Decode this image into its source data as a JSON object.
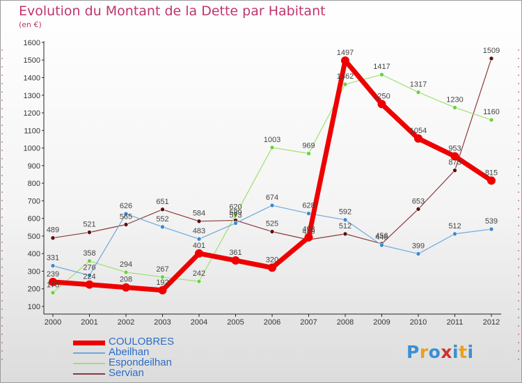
{
  "header": {
    "title": "Evolution du Montant de la Dette par Habitant",
    "subtitle": "(en €)"
  },
  "logo": {
    "text": "Proxiti",
    "colors": [
      "#3a8fd4",
      "#e8a020",
      "#3a8fd4",
      "#d03030",
      "#3a8fd4",
      "#e8a020",
      "#3a8fd4"
    ]
  },
  "chart_data": {
    "type": "line",
    "title": "Evolution du Montant de la Dette par Habitant",
    "subtitle": "(en €)",
    "xlabel": "",
    "ylabel": "",
    "ylim": [
      100,
      1600
    ],
    "yticks": [
      100,
      200,
      300,
      400,
      500,
      600,
      700,
      800,
      900,
      1000,
      1100,
      1200,
      1300,
      1400,
      1500,
      1600
    ],
    "grid": "none",
    "legend_position": "bottom-left",
    "categories": [
      "2000",
      "2001",
      "2002",
      "2003",
      "2004",
      "2005",
      "2006",
      "2007",
      "2008",
      "2009",
      "2010",
      "2011",
      "2012"
    ],
    "series": [
      {
        "name": "Servian",
        "color": "#8a3a3a",
        "marker": "#5a1010",
        "values": [
          489,
          521,
          565,
          651,
          584,
          589,
          525,
          479,
          512,
          456,
          653,
          873,
          1509
        ]
      },
      {
        "name": "Espondeilhan",
        "color": "#9ee070",
        "marker": "#6cd23c",
        "values": [
          178,
          358,
          294,
          267,
          242,
          620,
          1003,
          969,
          1362,
          1417,
          1317,
          1230,
          1160
        ]
      },
      {
        "name": "Abeilhan",
        "color": "#6ea8d8",
        "marker": "#3a8ad0",
        "values": [
          331,
          276,
          626,
          552,
          483,
          573,
          674,
          628,
          592,
          448,
          399,
          512,
          539
        ]
      },
      {
        "name": "COULOBRES",
        "color": "#ee0000",
        "marker": "#ee0000",
        "values": [
          239,
          224,
          208,
          192,
          401,
          361,
          320,
          493,
          1497,
          1250,
          1054,
          953,
          815
        ]
      }
    ]
  }
}
